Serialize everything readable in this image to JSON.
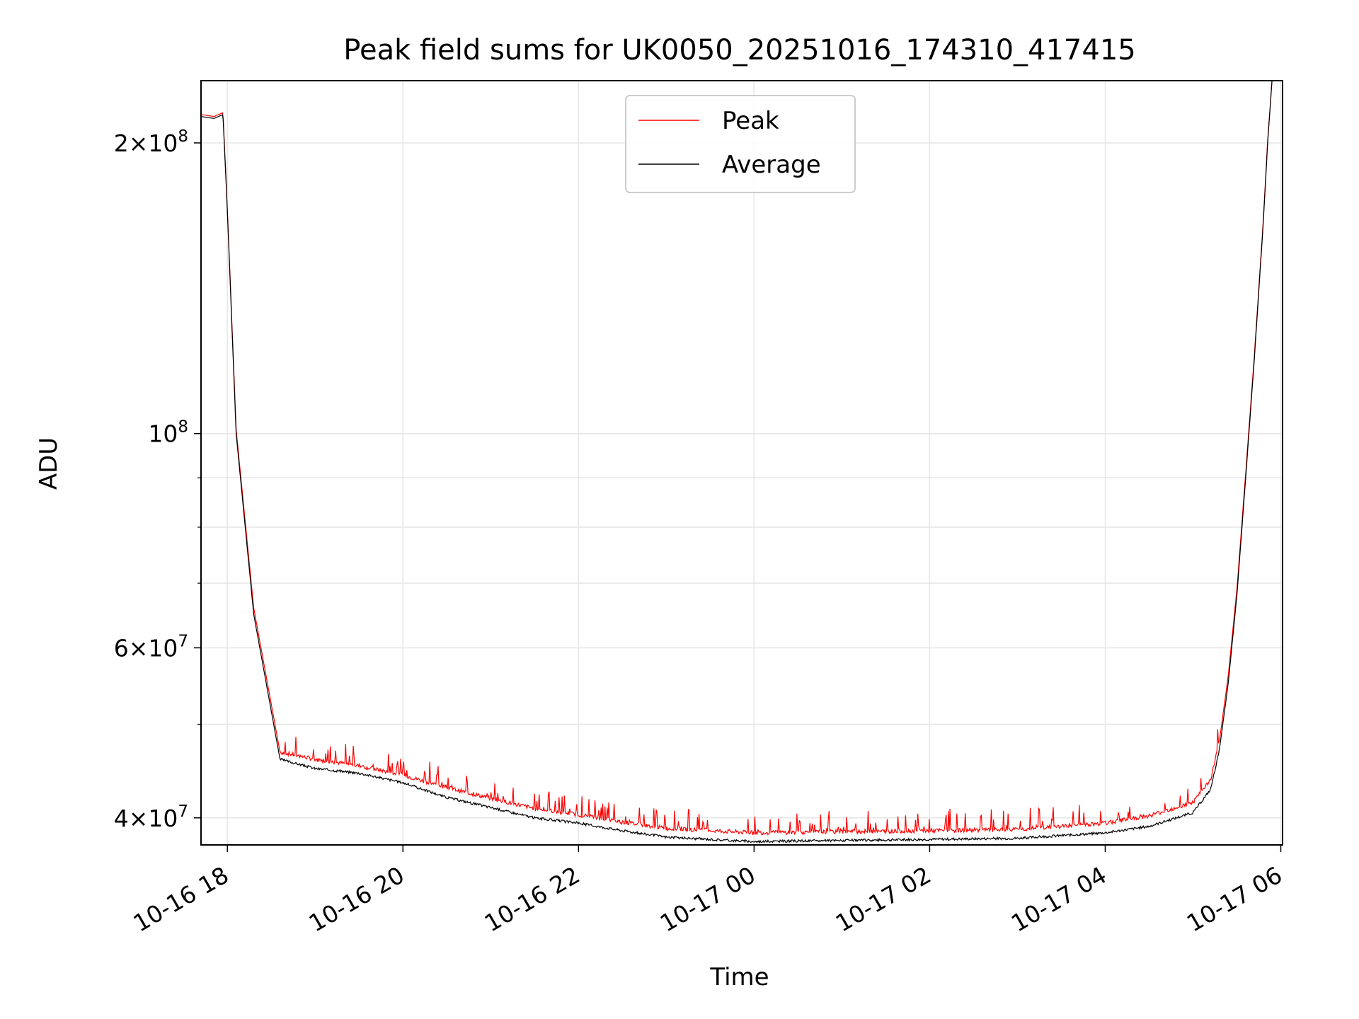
{
  "chart_data": {
    "type": "line",
    "title": "Peak field sums for UK0050_20251016_174310_417415",
    "xlabel": "Time",
    "ylabel": "ADU",
    "yscale": "log",
    "ylim": [
      37500000,
      232000000
    ],
    "xlim_hours": [
      -0.3,
      12.02
    ],
    "x_tick_labels": [
      "10-16 18",
      "10-16 20",
      "10-16 22",
      "10-17 00",
      "10-17 02",
      "10-17 04",
      "10-17 06"
    ],
    "x_tick_hours": [
      0,
      2,
      4,
      6,
      8,
      10,
      12
    ],
    "y_major_ticks": [
      {
        "value": 40000000,
        "mantissa": "4",
        "exponent": "7"
      },
      {
        "value": 60000000,
        "mantissa": "6",
        "exponent": "7"
      },
      {
        "value": 100000000,
        "mantissa": "",
        "exponent": "8"
      },
      {
        "value": 200000000,
        "mantissa": "2",
        "exponent": "8"
      }
    ],
    "y_minor_ticks": [
      50000000,
      70000000,
      80000000,
      90000000,
      300000000
    ],
    "grid": true,
    "legend_position": "top-center",
    "colors": {
      "Peak": "#ff0000",
      "Average": "#000000",
      "grid": "#e6e6e6"
    },
    "series": [
      {
        "name": "Average",
        "x_hours": [
          -0.3,
          -0.15,
          -0.05,
          0.0,
          0.1,
          0.3,
          0.6,
          1.0,
          1.5,
          2.0,
          2.5,
          3.0,
          3.5,
          4.0,
          4.5,
          5.0,
          5.5,
          6.0,
          7.0,
          8.0,
          9.0,
          10.0,
          10.5,
          11.0,
          11.2,
          11.3,
          11.4,
          11.5,
          11.6,
          11.7,
          11.8,
          11.85,
          11.9
        ],
        "values": [
          213000000,
          212000000,
          214000000,
          170000000,
          100000000,
          65000000,
          46000000,
          45000000,
          44500000,
          43500000,
          42000000,
          41000000,
          40000000,
          39500000,
          38800000,
          38200000,
          38000000,
          37800000,
          37900000,
          38000000,
          38100000,
          38600000,
          39200000,
          40500000,
          42800000,
          47000000,
          55000000,
          68000000,
          90000000,
          120000000,
          165000000,
          200000000,
          232000000
        ]
      },
      {
        "name": "Peak",
        "x_hours": [
          -0.3,
          -0.15,
          -0.05,
          0.0,
          0.1,
          0.3,
          0.6,
          1.0,
          1.5,
          2.0,
          2.5,
          3.0,
          3.5,
          4.0,
          4.5,
          5.0,
          5.5,
          6.0,
          7.0,
          8.0,
          9.0,
          10.0,
          10.5,
          11.0,
          11.2,
          11.3,
          11.4,
          11.5,
          11.6,
          11.7,
          11.8,
          11.85,
          11.9
        ],
        "values": [
          214000000,
          213000000,
          215000000,
          171000000,
          101000000,
          66000000,
          46800000,
          46000000,
          45300000,
          44300000,
          43000000,
          41900000,
          40900000,
          40300000,
          39600000,
          39000000,
          38800000,
          38600000,
          38700000,
          38800000,
          38900000,
          39500000,
          40200000,
          41500000,
          43800000,
          48000000,
          56000000,
          69000000,
          91000000,
          121000000,
          166000000,
          201000000,
          232000000
        ]
      }
    ]
  }
}
